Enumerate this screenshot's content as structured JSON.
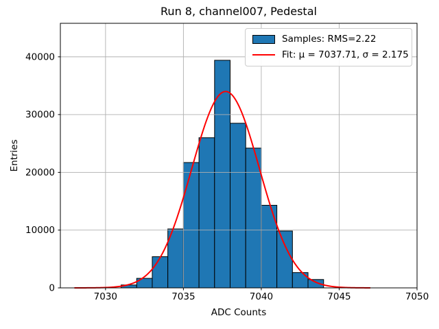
{
  "chart_data": {
    "type": "bar",
    "chart_kind": "histogram_with_gaussian_fit",
    "title": "Run 8, channel007, Pedestal",
    "xlabel": "ADC Counts",
    "ylabel": "Entries",
    "legend": {
      "position": "upper right",
      "entries": [
        {
          "label": "Samples: RMS=2.22",
          "swatch": "patch",
          "color": "#1f77b4",
          "edge_color": "#000000"
        },
        {
          "label": "Fit: μ = 7037.71, σ = 2.175",
          "swatch": "line",
          "color": "#ff0000"
        }
      ]
    },
    "histogram": {
      "bin_edges": [
        7031,
        7032,
        7033,
        7034,
        7035,
        7036,
        7037,
        7038,
        7039,
        7040,
        7041,
        7042,
        7043,
        7044
      ],
      "counts": [
        500,
        1650,
        5400,
        10200,
        21700,
        26000,
        39400,
        28500,
        24200,
        14300,
        9850,
        2650,
        1450
      ],
      "fill_color": "#1f77b4",
      "edge_color": "#000000"
    },
    "fit": {
      "type": "gaussian",
      "mu": 7037.71,
      "sigma": 2.175,
      "amplitude": 34000,
      "x_range": [
        7028,
        7047
      ],
      "color": "#ff0000",
      "line_width": 2
    },
    "axes": {
      "xlim": [
        7027.1,
        7050
      ],
      "ylim": [
        0,
        45800
      ],
      "xticks": [
        7030,
        7035,
        7040,
        7045,
        7050
      ],
      "yticks": [
        0,
        10000,
        20000,
        30000,
        40000
      ],
      "grid": true,
      "grid_color": "#b0b0b0",
      "spine_color": "#000000",
      "tick_label_color": "#000000"
    }
  }
}
